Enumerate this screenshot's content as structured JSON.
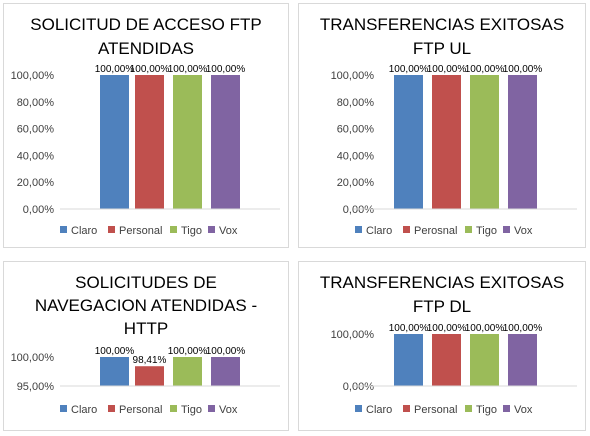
{
  "colors": {
    "claro": "#4f81bd",
    "personal": "#c0504d",
    "tigo": "#9bbb59",
    "vox": "#8064a2"
  },
  "chart_data": [
    {
      "type": "bar",
      "title_lines": [
        "SOLICITUD DE ACCESO FTP",
        "ATENDIDAS"
      ],
      "categories": [
        "Claro",
        "Personal",
        "Tigo",
        "Vox"
      ],
      "values": [
        100,
        100,
        100,
        100
      ],
      "data_labels": [
        "100,00%",
        "100,00%",
        "100,00%",
        "100,00%"
      ],
      "ylim": [
        0,
        100
      ],
      "yticks": [
        "100,00%",
        "80,00%",
        "60,00%",
        "40,00%",
        "20,00%",
        "0,00%"
      ],
      "legend": [
        "Claro",
        "Personal",
        "Tigo",
        "Vox"
      ],
      "legend_position": "bottom",
      "grid": false
    },
    {
      "type": "bar",
      "title_lines": [
        "TRANSFERENCIAS EXITOSAS",
        "FTP UL"
      ],
      "categories": [
        "Claro",
        "Perosnal",
        "Tigo",
        "Vox"
      ],
      "values": [
        100,
        100,
        100,
        100
      ],
      "data_labels": [
        "100,00%",
        "100,00%",
        "100,00%",
        "100,00%"
      ],
      "ylim": [
        0,
        100
      ],
      "yticks": [
        "100,00%",
        "80,00%",
        "60,00%",
        "40,00%",
        "20,00%",
        "0,00%"
      ],
      "legend": [
        "Claro",
        "Perosnal",
        "Tigo",
        "Vox"
      ],
      "legend_position": "bottom",
      "grid": false
    },
    {
      "type": "bar",
      "title_lines": [
        "SOLICITUDES DE",
        "NAVEGACION ATENDIDAS -",
        "HTTP"
      ],
      "categories": [
        "Claro",
        "Personal",
        "Tigo",
        "Vox"
      ],
      "values": [
        100,
        98.41,
        100,
        100
      ],
      "data_labels": [
        "100,00%",
        "98,41%",
        "100,00%",
        "100,00%"
      ],
      "ylim": [
        95,
        100
      ],
      "yticks": [
        "100,00%",
        "95,00%"
      ],
      "legend": [
        "Claro",
        "Personal",
        "Tigo",
        "Vox"
      ],
      "legend_position": "bottom",
      "grid": false
    },
    {
      "type": "bar",
      "title_lines": [
        "TRANSFERENCIAS EXITOSAS",
        "FTP DL"
      ],
      "categories": [
        "Claro",
        "Personal",
        "Tigo",
        "Vox"
      ],
      "values": [
        100,
        100,
        100,
        100
      ],
      "data_labels": [
        "100,00%",
        "100,00%",
        "100,00%",
        "100,00%"
      ],
      "ylim": [
        0,
        100
      ],
      "yticks": [
        "100,00%",
        "0,00%"
      ],
      "legend": [
        "Claro",
        "Personal",
        "Tigo",
        "Vox"
      ],
      "legend_position": "bottom",
      "grid": false
    }
  ]
}
